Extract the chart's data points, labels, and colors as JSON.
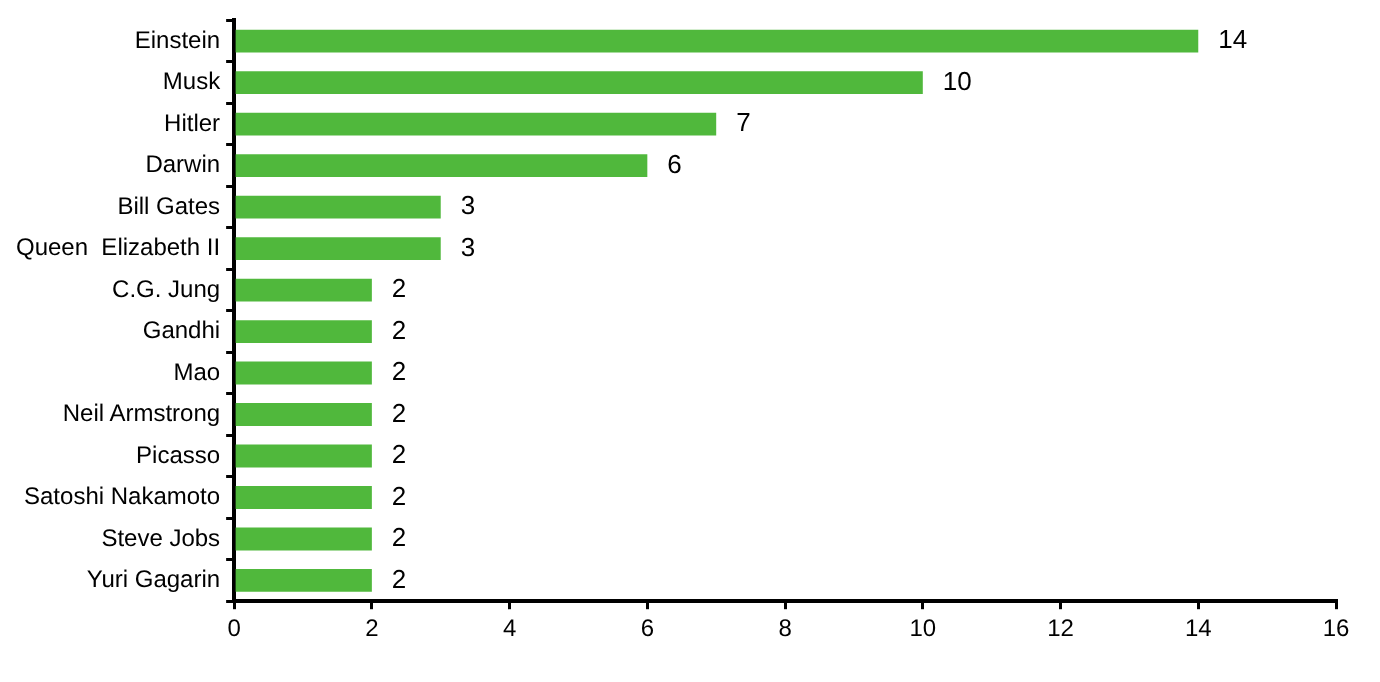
{
  "chart_data": {
    "type": "bar",
    "orientation": "horizontal",
    "categories": [
      "Einstein",
      "Musk",
      "Hitler",
      "Darwin",
      "Bill Gates",
      "Queen  Elizabeth II",
      "C.G. Jung",
      "Gandhi",
      "Mao",
      "Neil Armstrong",
      "Picasso",
      "Satoshi Nakamoto",
      "Steve Jobs",
      "Yuri Gagarin"
    ],
    "values": [
      14,
      10,
      7,
      6,
      3,
      3,
      2,
      2,
      2,
      2,
      2,
      2,
      2,
      2
    ],
    "color": "#50b83c",
    "xlim": [
      0,
      16
    ],
    "xticks": [
      0,
      2,
      4,
      6,
      8,
      10,
      12,
      14,
      16
    ],
    "grid": false,
    "legend": false,
    "data_labels": true
  }
}
